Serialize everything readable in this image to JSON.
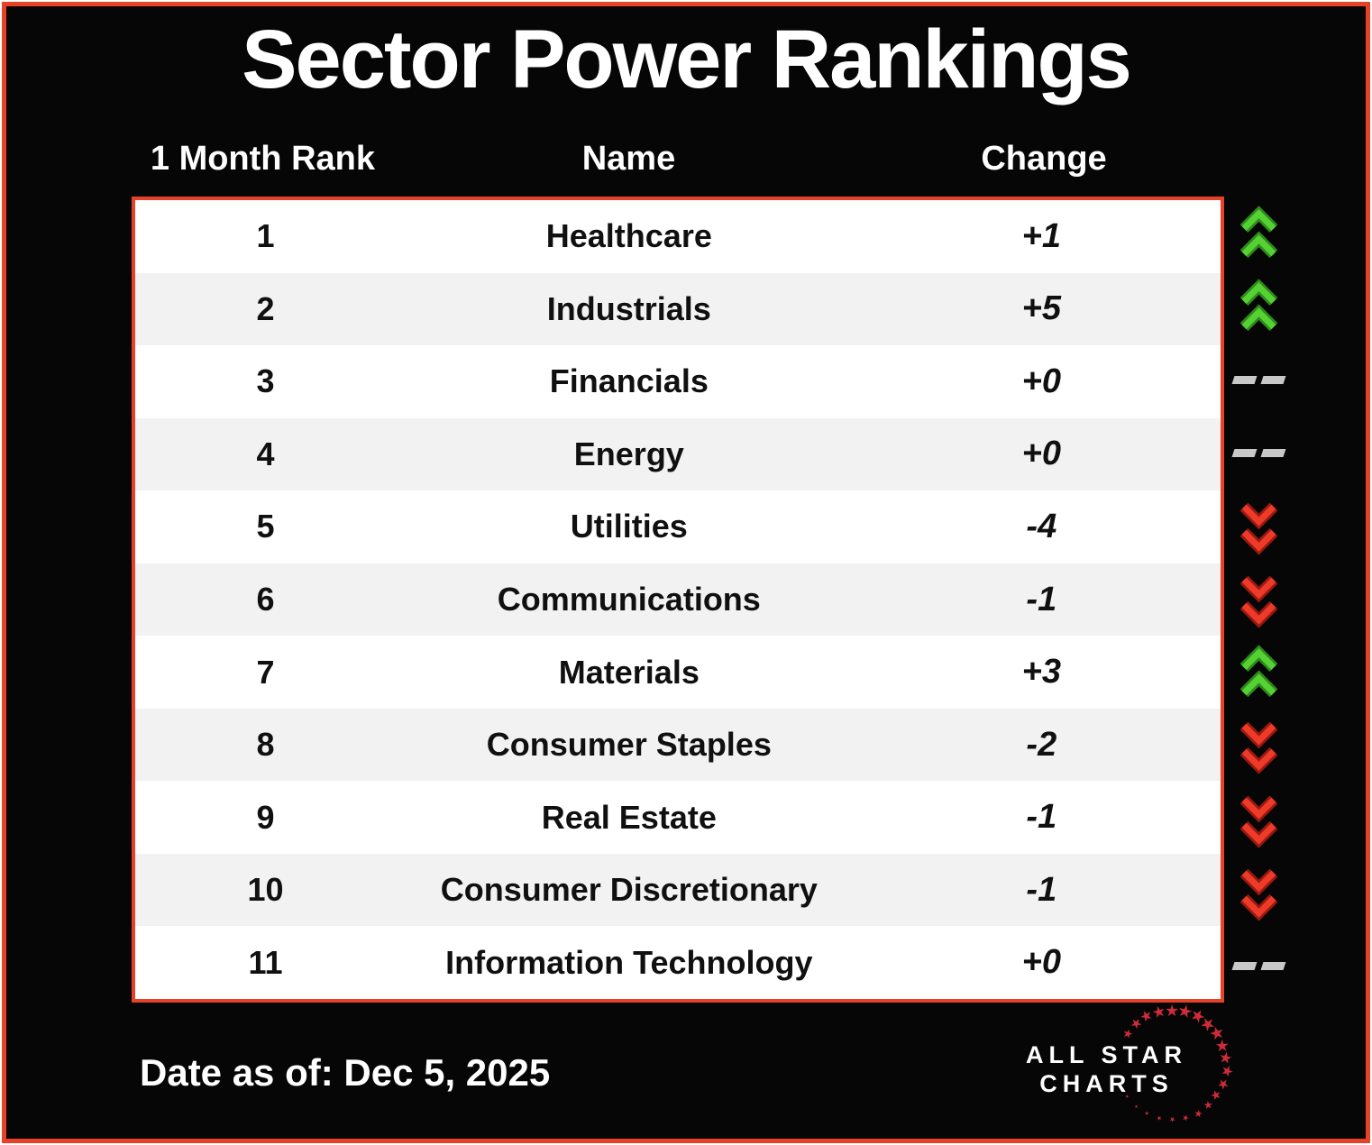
{
  "title": "Sector Power Rankings",
  "table": {
    "headers": {
      "rank": "1 Month Rank",
      "name": "Name",
      "change": "Change"
    },
    "rows": [
      {
        "rank": "1",
        "name": "Healthcare",
        "change": "+1",
        "direction": "up"
      },
      {
        "rank": "2",
        "name": "Industrials",
        "change": "+5",
        "direction": "up"
      },
      {
        "rank": "3",
        "name": "Financials",
        "change": "+0",
        "direction": "flat"
      },
      {
        "rank": "4",
        "name": "Energy",
        "change": "+0",
        "direction": "flat"
      },
      {
        "rank": "5",
        "name": "Utilities",
        "change": "-4",
        "direction": "down"
      },
      {
        "rank": "6",
        "name": "Communications",
        "change": "-1",
        "direction": "down"
      },
      {
        "rank": "7",
        "name": "Materials",
        "change": "+3",
        "direction": "up"
      },
      {
        "rank": "8",
        "name": "Consumer Staples",
        "change": "-2",
        "direction": "down"
      },
      {
        "rank": "9",
        "name": "Real Estate",
        "change": "-1",
        "direction": "down"
      },
      {
        "rank": "10",
        "name": "Consumer Discretionary",
        "change": "-1",
        "direction": "down"
      },
      {
        "rank": "11",
        "name": "Information Technology",
        "change": "+0",
        "direction": "flat"
      }
    ]
  },
  "footer": {
    "date_label": "Date as of: Dec 5, 2025"
  },
  "logo": {
    "line1": "ALL STAR",
    "line2": "CHARTS"
  },
  "colors": {
    "accent_red": "#e84128",
    "background": "#060606",
    "row_alt": "#f2f2f2",
    "up_bright": "#55d133",
    "up_dark": "#2e8a1b",
    "down_bright": "#ee3a28",
    "down_dark": "#99190f",
    "flat_gray": "#c8c8c8",
    "star_red": "#cf2b3a"
  },
  "chart_data": {
    "type": "table",
    "title": "Sector Power Rankings",
    "columns": [
      "1 Month Rank",
      "Name",
      "Change"
    ],
    "rows": [
      [
        1,
        "Healthcare",
        "+1"
      ],
      [
        2,
        "Industrials",
        "+5"
      ],
      [
        3,
        "Financials",
        "+0"
      ],
      [
        4,
        "Energy",
        "+0"
      ],
      [
        5,
        "Utilities",
        "-4"
      ],
      [
        6,
        "Communications",
        "-1"
      ],
      [
        7,
        "Materials",
        "+3"
      ],
      [
        8,
        "Consumer Staples",
        "-2"
      ],
      [
        9,
        "Real Estate",
        "-1"
      ],
      [
        10,
        "Consumer Discretionary",
        "-1"
      ],
      [
        11,
        "Information Technology",
        "+0"
      ]
    ],
    "change_direction": [
      "up",
      "up",
      "flat",
      "flat",
      "down",
      "down",
      "up",
      "down",
      "down",
      "down",
      "flat"
    ],
    "as_of": "Dec 5, 2025"
  }
}
